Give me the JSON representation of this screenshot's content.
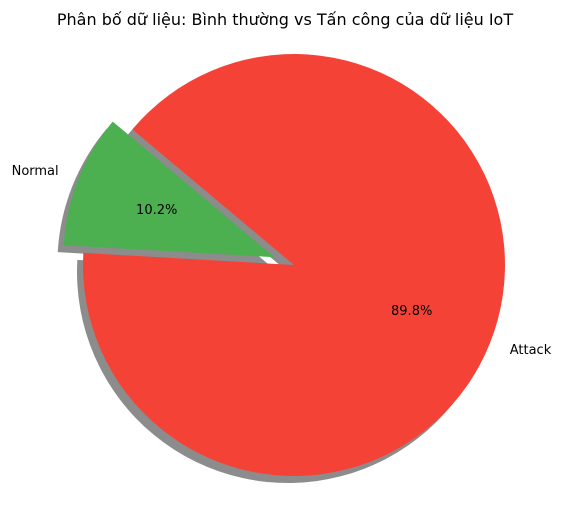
{
  "chart_data": {
    "type": "pie",
    "title": "Phân bố dữ liệu: Bình thường vs Tấn công của dữ liệu IoT",
    "categories": [
      "Normal",
      "Attack"
    ],
    "values": [
      10.2,
      89.8
    ],
    "percent_labels": [
      "10.2%",
      "89.8%"
    ],
    "colors": [
      "#4caf50",
      "#f44336"
    ],
    "exploded": [
      "Normal"
    ],
    "shadow": true,
    "start_angle_deg": 140
  }
}
